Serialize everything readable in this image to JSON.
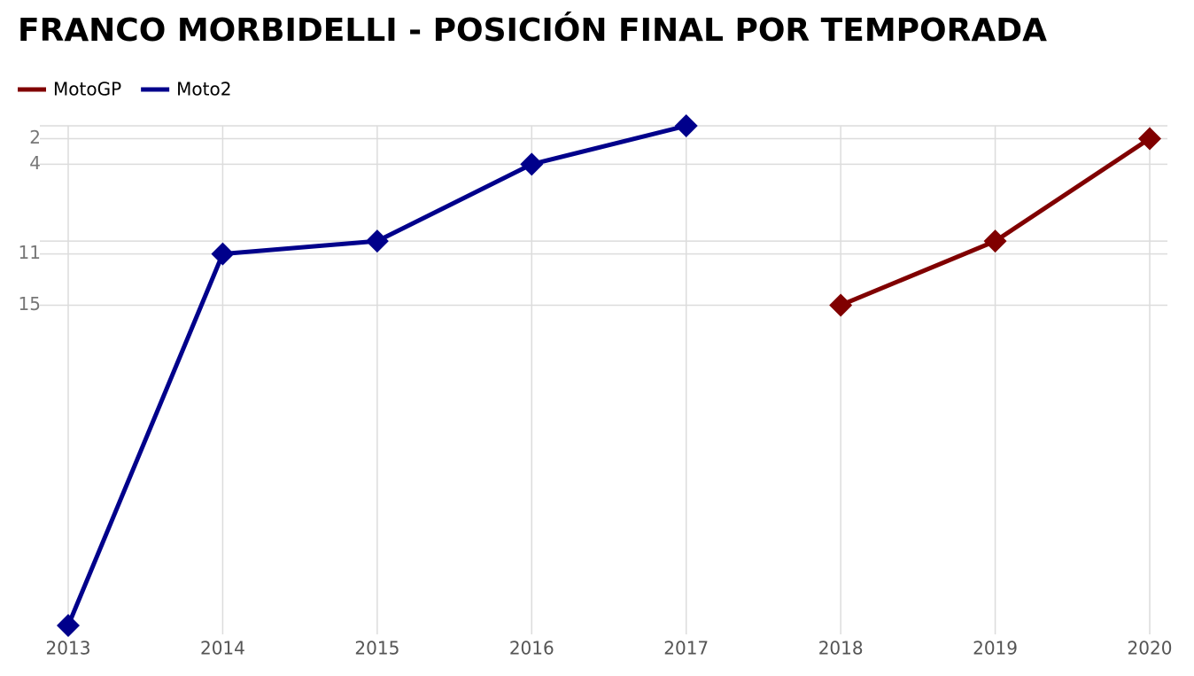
{
  "chart_data": {
    "type": "line",
    "title": "FRANCO MORBIDELLI - POSICIÓN FINAL POR TEMPORADA",
    "series": [
      {
        "name": "MotoGP",
        "color": "#800000",
        "x": [
          2018,
          2019,
          2020
        ],
        "values": [
          15,
          10,
          2
        ]
      },
      {
        "name": "Moto2",
        "color": "#00008b",
        "x": [
          2013,
          2014,
          2015,
          2016,
          2017
        ],
        "values": [
          40,
          11,
          10,
          4,
          1
        ]
      }
    ],
    "xlim": [
      2013,
      2020
    ],
    "xticks": [
      2013,
      2014,
      2015,
      2016,
      2017,
      2018,
      2019,
      2020
    ],
    "ylim": [
      1,
      40
    ],
    "y_reversed": true,
    "yticks": [
      2,
      4,
      11,
      15
    ],
    "y_extra_grid": [
      1,
      10
    ],
    "grid": true,
    "legend": "top-left"
  }
}
